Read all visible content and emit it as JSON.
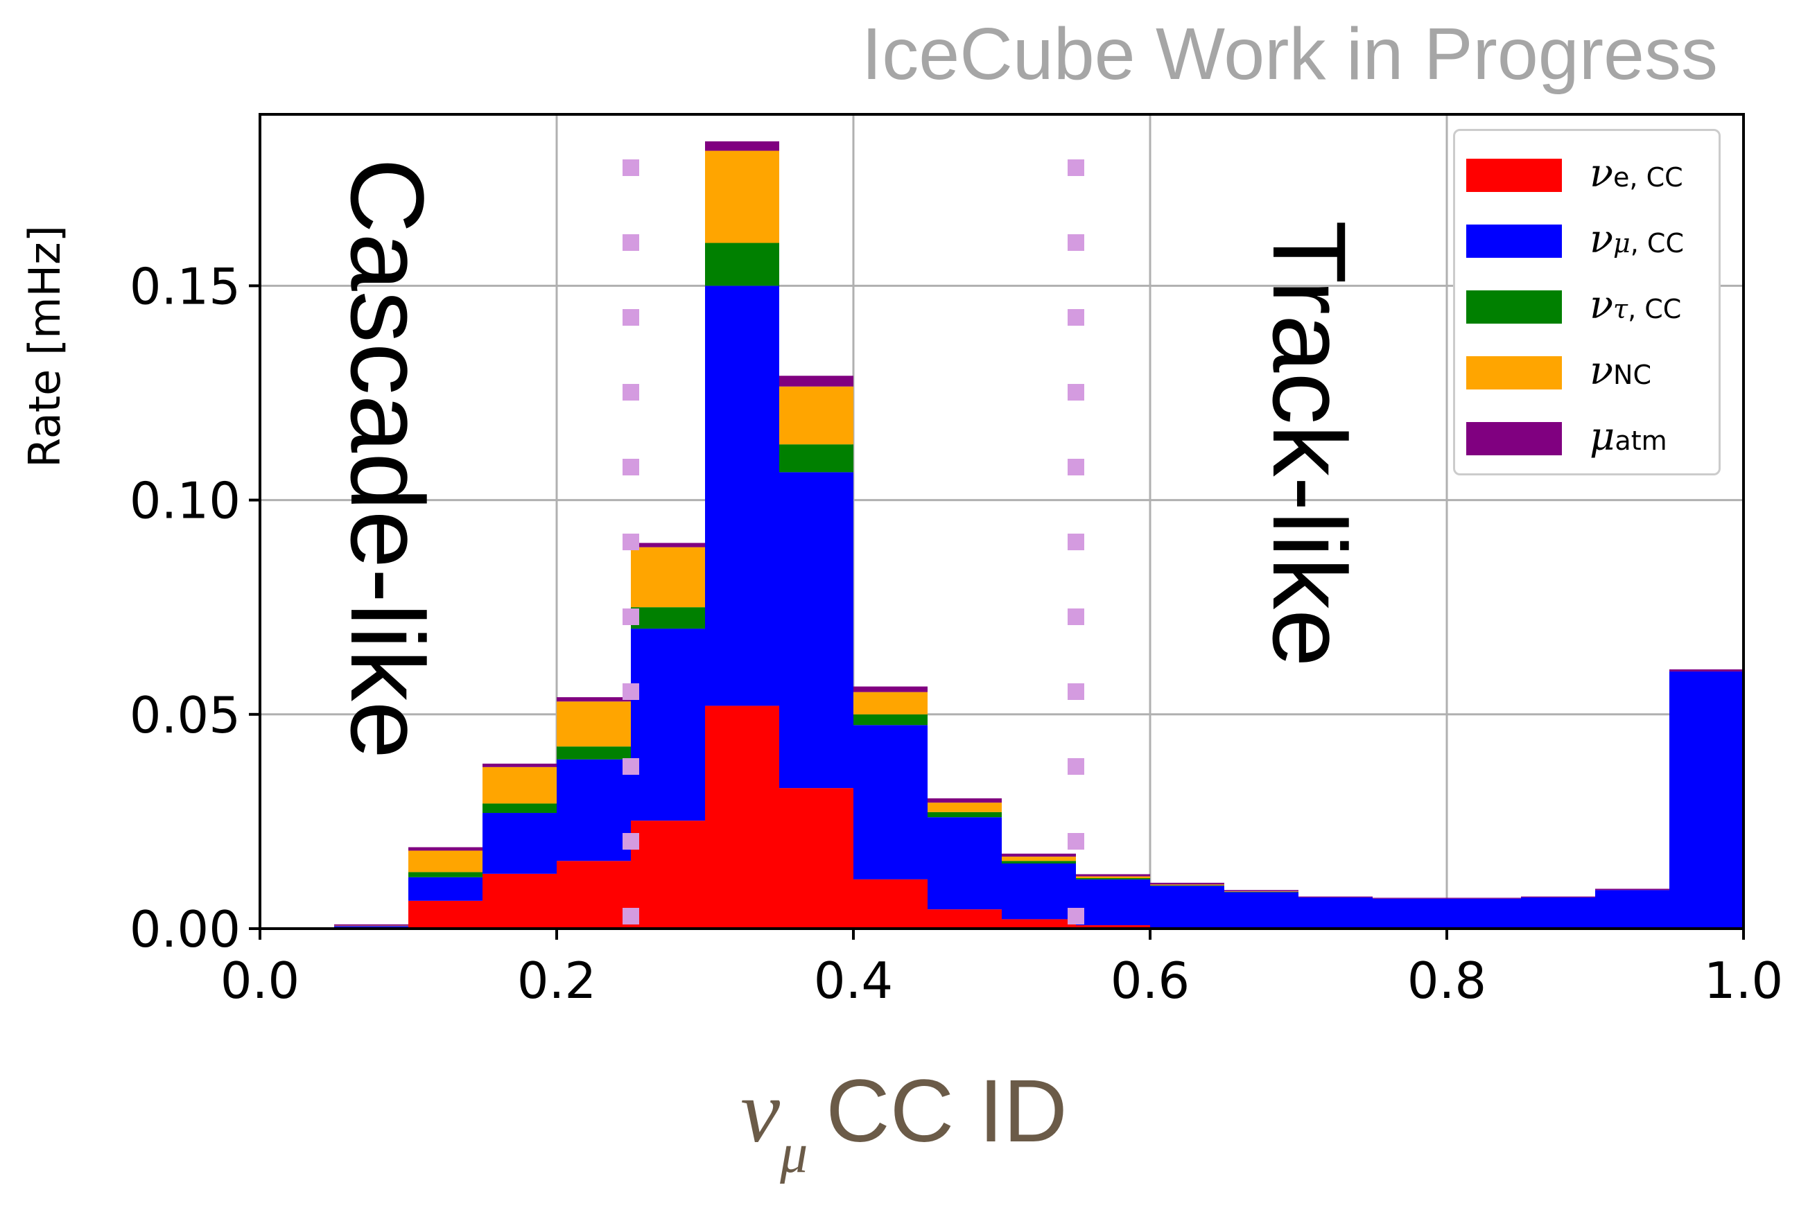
{
  "watermark": "IceCube Work in Progress",
  "chart_data": {
    "type": "bar",
    "stacked": true,
    "histogram": true,
    "title": "",
    "xlabel": {
      "symbol": "ν",
      "subscript": "μ",
      "text": "CC ID"
    },
    "ylabel": "Rate [mHz]",
    "xlim": [
      0.0,
      1.0
    ],
    "ylim": [
      0.0,
      0.19
    ],
    "xticks": [
      "0.0",
      "0.2",
      "0.4",
      "0.6",
      "0.8",
      "1.0"
    ],
    "yticks": [
      "0.00",
      "0.05",
      "0.10",
      "0.15"
    ],
    "xtick_values": [
      0.0,
      0.2,
      0.4,
      0.6,
      0.8,
      1.0
    ],
    "ytick_values": [
      0.0,
      0.05,
      0.1,
      0.15
    ],
    "grid": true,
    "legend_position": "top-right",
    "bin_edges": [
      0.0,
      0.05,
      0.1,
      0.15,
      0.2,
      0.25,
      0.3,
      0.35,
      0.4,
      0.45,
      0.5,
      0.55,
      0.6,
      0.65,
      0.7,
      0.75,
      0.8,
      0.85,
      0.9,
      0.95,
      1.0
    ],
    "series": [
      {
        "key": "nue_cc",
        "color": "#ff0000",
        "values": [
          0,
          0.0003,
          0.0065,
          0.0128,
          0.0158,
          0.0252,
          0.052,
          0.0328,
          0.0115,
          0.0045,
          0.0022,
          0.0008,
          0.0003,
          0.0002,
          0.0001,
          0.0001,
          0.0001,
          0.0001,
          0.0001,
          0.0001
        ]
      },
      {
        "key": "numu_cc",
        "color": "#0000ff",
        "values": [
          0,
          0.0003,
          0.0055,
          0.0142,
          0.0237,
          0.0448,
          0.098,
          0.0737,
          0.036,
          0.0215,
          0.013,
          0.0107,
          0.0097,
          0.0083,
          0.0072,
          0.0069,
          0.0069,
          0.0072,
          0.0089,
          0.0599
        ]
      },
      {
        "key": "nutau_cc",
        "color": "#008000",
        "values": [
          0,
          0,
          0.0012,
          0.0022,
          0.003,
          0.005,
          0.01,
          0.0065,
          0.0025,
          0.0012,
          0.0006,
          0.0003,
          0.0001,
          0.0001,
          0,
          0,
          0,
          0,
          0,
          0
        ]
      },
      {
        "key": "nu_nc",
        "color": "#ffa500",
        "values": [
          0,
          0.0001,
          0.005,
          0.0085,
          0.0105,
          0.014,
          0.0215,
          0.0135,
          0.0052,
          0.0022,
          0.001,
          0.0004,
          0.0002,
          0.0001,
          0,
          0,
          0,
          0,
          0,
          0
        ]
      },
      {
        "key": "mu_atm",
        "color": "#800080",
        "values": [
          0,
          0.0003,
          0.0008,
          0.0008,
          0.001,
          0.001,
          0.0022,
          0.0025,
          0.0013,
          0.001,
          0.0007,
          0.0005,
          0.0004,
          0.0003,
          0.0002,
          0.0002,
          0.0002,
          0.0002,
          0.0003,
          0.0005
        ]
      }
    ],
    "legend": [
      {
        "key": "nue_cc",
        "symbol": "ν",
        "sub": "e, CC",
        "sub_italic": false,
        "color": "#ff0000"
      },
      {
        "key": "numu_cc",
        "symbol": "ν",
        "sub_greek": "μ",
        "sub": ", CC",
        "color": "#0000ff"
      },
      {
        "key": "nutau_cc",
        "symbol": "ν",
        "sub_greek": "τ",
        "sub": ", CC",
        "color": "#008000"
      },
      {
        "key": "nu_nc",
        "symbol": "ν",
        "sub": "NC",
        "color": "#ffa500"
      },
      {
        "key": "mu_atm",
        "symbol": "μ",
        "sub": "atm",
        "color": "#800080"
      }
    ],
    "cut_lines": [
      {
        "x": 0.25,
        "style": "dotted",
        "color": "#d49be0"
      },
      {
        "x": 0.55,
        "style": "dotted",
        "color": "#d49be0"
      }
    ],
    "annotations": [
      {
        "text": "Cascade-like"
      },
      {
        "text": "Track-like"
      }
    ]
  }
}
